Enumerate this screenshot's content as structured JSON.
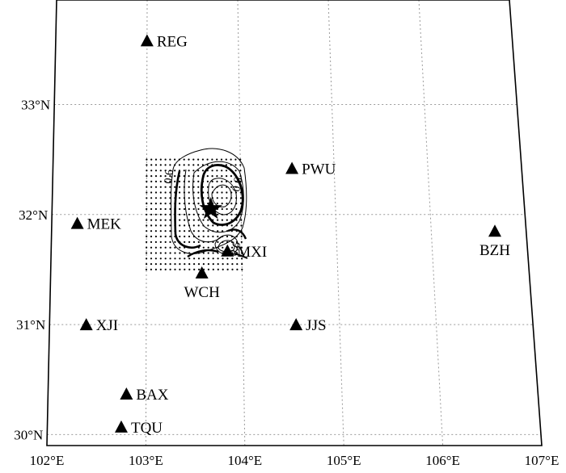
{
  "map": {
    "lon_range": [
      102,
      107
    ],
    "lat_range": [
      29.9,
      33.95
    ],
    "grid": true,
    "lon_ticks": [
      {
        "value": 102,
        "label": "102°E"
      },
      {
        "value": 103,
        "label": "103°E"
      },
      {
        "value": 104,
        "label": "104°E"
      },
      {
        "value": 105,
        "label": "105°E"
      },
      {
        "value": 106,
        "label": "106°E"
      },
      {
        "value": 107,
        "label": "107°E"
      }
    ],
    "lat_ticks": [
      {
        "value": 30,
        "label": "30°N"
      },
      {
        "value": 31,
        "label": "31°N"
      },
      {
        "value": 32,
        "label": "32°N"
      },
      {
        "value": 33,
        "label": "33°N"
      }
    ],
    "stations": [
      {
        "code": "REG",
        "lon": 103.0,
        "lat": 33.58,
        "label_side": "right"
      },
      {
        "code": "PWU",
        "lon": 104.55,
        "lat": 32.42,
        "label_side": "right"
      },
      {
        "code": "MEK",
        "lon": 102.27,
        "lat": 31.92,
        "label_side": "right"
      },
      {
        "code": "BZH",
        "lon": 106.67,
        "lat": 31.85,
        "label_side": "below"
      },
      {
        "code": "MXI",
        "lon": 103.85,
        "lat": 31.67,
        "label_side": "right"
      },
      {
        "code": "WCH",
        "lon": 103.58,
        "lat": 31.47,
        "label_side": "below"
      },
      {
        "code": "XJI",
        "lon": 102.38,
        "lat": 31.0,
        "label_side": "right"
      },
      {
        "code": "JJS",
        "lon": 104.55,
        "lat": 31.0,
        "label_side": "right"
      },
      {
        "code": "BAX",
        "lon": 102.8,
        "lat": 30.37,
        "label_side": "right"
      },
      {
        "code": "TQU",
        "lon": 102.75,
        "lat": 30.07,
        "label_side": "right"
      }
    ],
    "epicenter": {
      "lon": 103.68,
      "lat": 32.05
    },
    "search_grid": {
      "lon_min": 103.0,
      "lon_max": 104.0,
      "lat_min": 31.5,
      "lat_max": 32.5,
      "step": 0.05
    },
    "contour_labels": [
      "0.6",
      "0.6",
      "0.6"
    ]
  }
}
